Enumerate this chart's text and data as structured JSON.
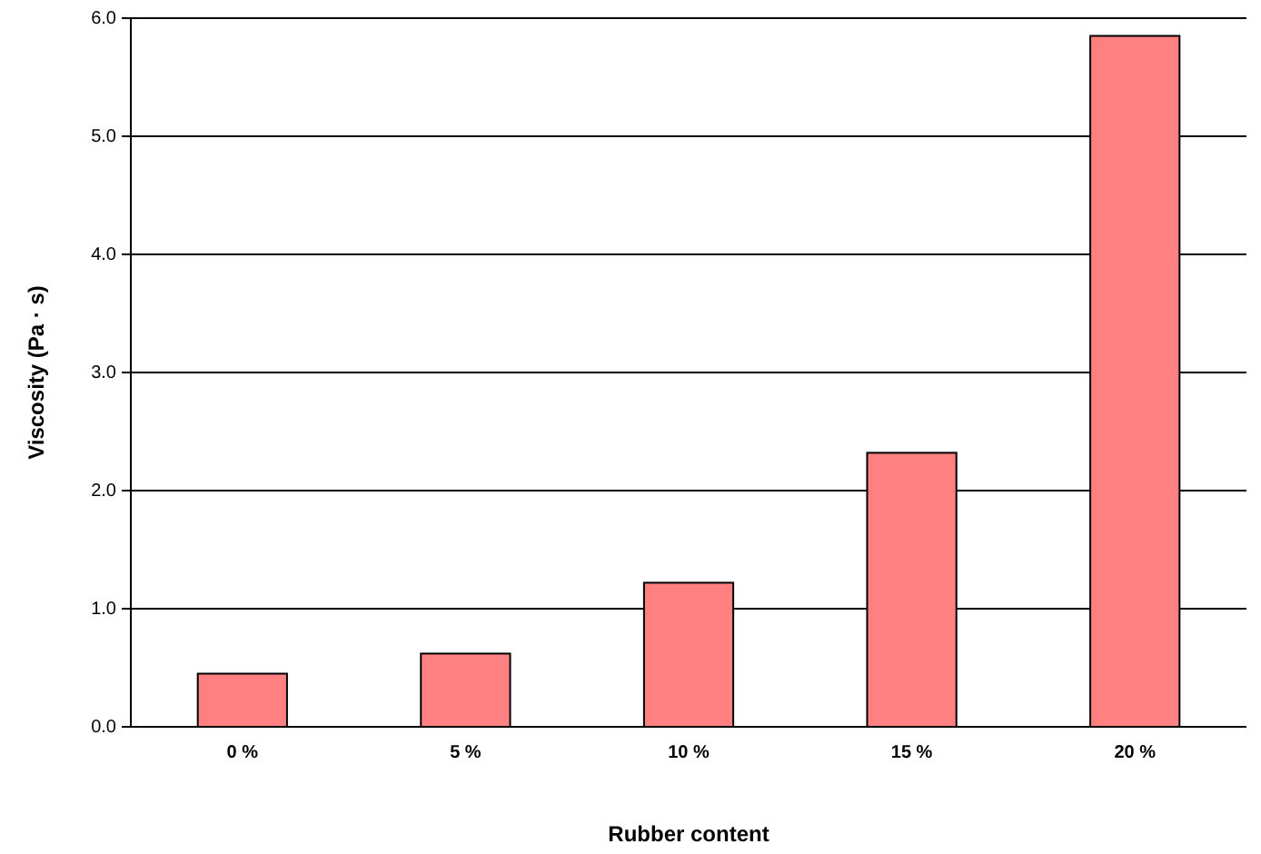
{
  "chart_data": {
    "type": "bar",
    "xlabel": "Rubber content",
    "ylabel": "Viscosity (Pa · s)",
    "categories": [
      "0 %",
      "5 %",
      "10 %",
      "15 %",
      "20 %"
    ],
    "values": [
      0.45,
      0.62,
      1.22,
      2.32,
      5.85
    ],
    "color": "#ff8080",
    "ylim": [
      0,
      6
    ],
    "yticks": [
      {
        "value": 0,
        "label": "0.0"
      },
      {
        "value": 1,
        "label": "1.0"
      },
      {
        "value": 2,
        "label": "2.0"
      },
      {
        "value": 3,
        "label": "3.0"
      },
      {
        "value": 4,
        "label": "4.0"
      },
      {
        "value": 5,
        "label": "5.0"
      },
      {
        "value": 6,
        "label": "6.0"
      }
    ],
    "grid": "y"
  }
}
